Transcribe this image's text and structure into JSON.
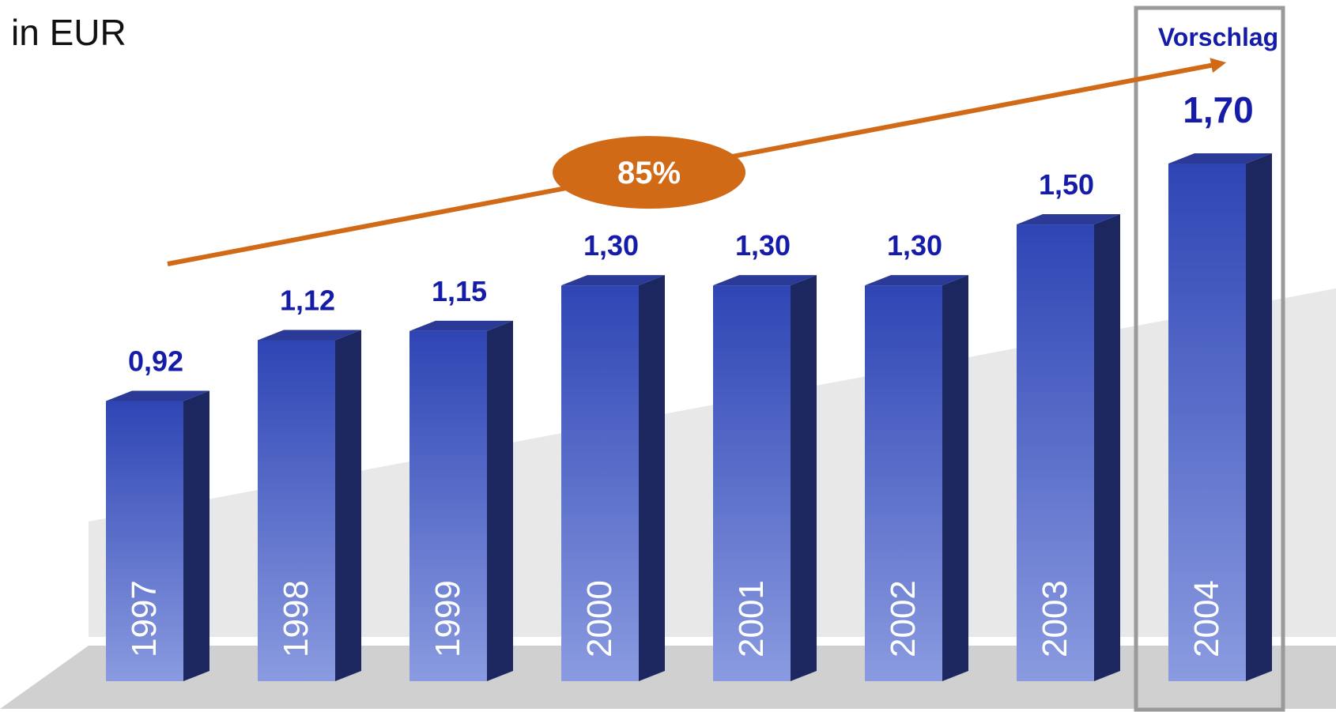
{
  "chart_data": {
    "type": "bar",
    "unit_label": "in EUR",
    "categories": [
      "1997",
      "1998",
      "1999",
      "2000",
      "2001",
      "2002",
      "2003",
      "2004"
    ],
    "values": [
      0.92,
      1.12,
      1.15,
      1.3,
      1.3,
      1.3,
      1.5,
      1.7
    ],
    "value_labels": [
      "0,92",
      "1,12",
      "1,15",
      "1,30",
      "1,30",
      "1,30",
      "1,50",
      "1,70"
    ],
    "ylim": [
      0,
      1.7
    ],
    "highlight": {
      "category": "2004",
      "label": "Vorschlag"
    },
    "growth_arrow": {
      "from": "1997",
      "to": "2004",
      "label": "85%"
    },
    "grid": false,
    "legend": "none"
  },
  "colors": {
    "bar_front_top": "#2e45b4",
    "bar_front_bottom": "#8a9be0",
    "bar_side": "#1c2760",
    "bar_top": "#2a3a96",
    "value_label": "#141ca8",
    "arrow": "#d06a16",
    "highlight_frame": "#9a9a9a",
    "floor": "#d0d0d0",
    "backwall": "#e8e8e8",
    "year_label": "#ffffff"
  }
}
